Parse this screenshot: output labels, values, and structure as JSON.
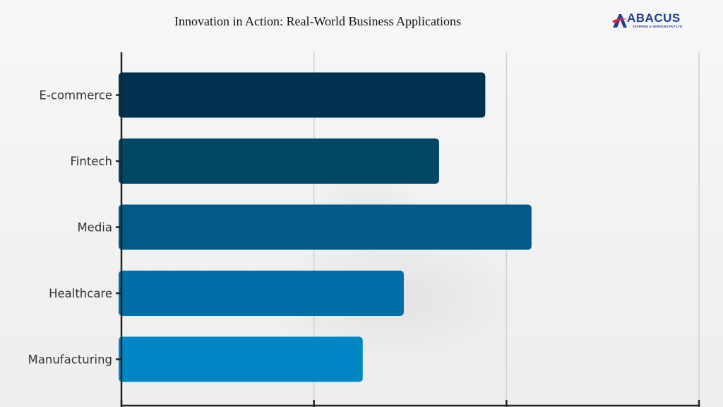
{
  "header": {
    "title": "Innovation in Action: Real-World Business Applications"
  },
  "logo": {
    "name": "ABACUS",
    "tagline": "STAFFING & SERVICES PVT LTD",
    "brand_color": "#1c3f8f",
    "accent_color": "#e0282e"
  },
  "chart_data": {
    "type": "bar",
    "orientation": "horizontal",
    "title": "",
    "xlabel": "",
    "ylabel": "",
    "categories": [
      "E-commerce",
      "Fintech",
      "Media",
      "Healthcare",
      "Manufacturing"
    ],
    "values": [
      56.7,
      49.5,
      63.9,
      44.0,
      37.6
    ],
    "xlim": [
      0,
      90
    ],
    "x_gridlines": [
      0,
      30,
      60,
      90
    ],
    "tick_labels_shown": false,
    "bar_colors": [
      "#00324f",
      "#034766",
      "#015a87",
      "#006ea8",
      "#0287c6"
    ],
    "grid": true,
    "legend": "none"
  }
}
